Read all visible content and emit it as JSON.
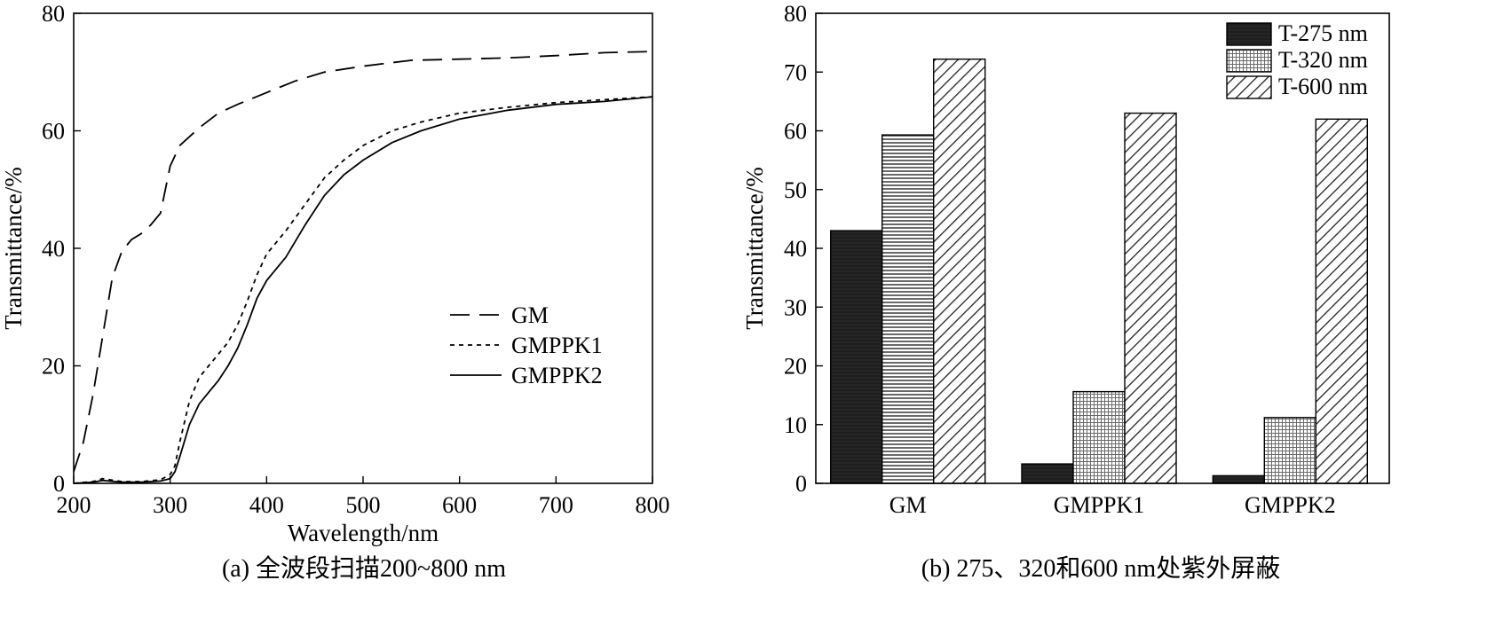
{
  "chart_data": [
    {
      "type": "line",
      "panel_caption": "(a) 全波段扫描200~800 nm",
      "xlabel": "Wavelength/nm",
      "ylabel": "Transmittance/%",
      "xlim": [
        200,
        800
      ],
      "ylim": [
        0,
        80
      ],
      "xticks": [
        200,
        300,
        400,
        500,
        600,
        700,
        800
      ],
      "yticks": [
        0,
        20,
        40,
        60,
        80
      ],
      "legend_position": "center-right",
      "series": [
        {
          "name": "GM",
          "style": "long-dash",
          "x": [
            200,
            210,
            220,
            230,
            240,
            250,
            260,
            270,
            280,
            290,
            300,
            310,
            330,
            350,
            370,
            400,
            430,
            460,
            500,
            550,
            600,
            650,
            700,
            750,
            800
          ],
          "y": [
            2,
            7,
            15,
            25,
            35,
            39.5,
            41.5,
            42.5,
            44,
            46,
            54,
            57.5,
            60.5,
            63,
            64.5,
            66.5,
            68.5,
            70,
            71,
            72,
            72.2,
            72.4,
            72.8,
            73.3,
            73.5
          ]
        },
        {
          "name": "GMPPK1",
          "style": "short-dash",
          "x": [
            200,
            220,
            230,
            250,
            270,
            290,
            300,
            305,
            310,
            320,
            330,
            340,
            350,
            360,
            370,
            380,
            390,
            400,
            420,
            440,
            460,
            480,
            500,
            530,
            560,
            600,
            650,
            700,
            750,
            800
          ],
          "y": [
            0,
            0.3,
            0.8,
            0.3,
            0.3,
            0.6,
            1.5,
            3,
            7,
            14,
            18,
            20,
            22,
            24,
            27,
            31,
            35.5,
            39,
            43,
            47.5,
            52,
            55,
            57.5,
            60,
            61.5,
            63,
            64,
            64.8,
            65.3,
            65.8
          ]
        },
        {
          "name": "GMPPK2",
          "style": "solid",
          "x": [
            200,
            220,
            230,
            250,
            270,
            290,
            300,
            305,
            310,
            320,
            330,
            340,
            350,
            360,
            370,
            380,
            390,
            400,
            420,
            440,
            460,
            480,
            500,
            530,
            560,
            600,
            650,
            700,
            750,
            800
          ],
          "y": [
            0,
            0.2,
            0.5,
            0.2,
            0.2,
            0.4,
            0.8,
            2,
            4.5,
            10,
            13.5,
            15.5,
            17.5,
            20,
            23,
            27,
            31.5,
            34.5,
            38.5,
            44,
            49,
            52.5,
            55,
            58,
            60,
            62,
            63.5,
            64.5,
            65,
            65.8
          ]
        }
      ]
    },
    {
      "type": "bar",
      "panel_caption": "(b) 275、320和600 nm处紫外屏蔽",
      "xlabel": "",
      "ylabel": "Transmittance/%",
      "ylim": [
        0,
        80
      ],
      "yticks": [
        0,
        10,
        20,
        30,
        40,
        50,
        60,
        70,
        80
      ],
      "categories": [
        "GM",
        "GMPPK1",
        "GMPPK2"
      ],
      "legend_position": "top-right",
      "series": [
        {
          "name": "T-275 nm",
          "fill": "solid-dark",
          "values": [
            43,
            3.3,
            1.3
          ]
        },
        {
          "name": "T-320 nm",
          "fill": "fine-grid",
          "values": [
            59.3,
            15.6,
            11.2
          ]
        },
        {
          "name": "T-600 nm",
          "fill": "diagonal-hatch",
          "values": [
            72.2,
            63,
            62
          ]
        }
      ]
    }
  ]
}
